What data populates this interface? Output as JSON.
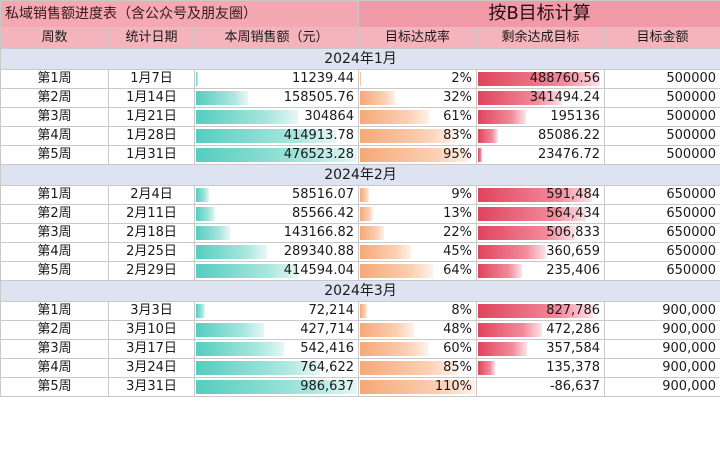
{
  "title_left": "私域销售额进度表（含公众号及朋友圈）",
  "title_right": "按B目标计算",
  "headers": [
    "周数",
    "统计日期",
    "本周销售额（元）",
    "目标达成率",
    "剩余达成目标",
    "目标金额"
  ],
  "colors": {
    "sales_bar": "#55cdbf",
    "rate_bar": "#f6a877",
    "remain_bar": "#e0445d",
    "header_bg": "#f5b3bc",
    "month_bg": "#dde3f0"
  },
  "months": [
    {
      "label": "2024年1月",
      "rows": [
        {
          "week": "第1周",
          "date": "1月7日",
          "sales": "11239.44",
          "rate": "2%",
          "remain": "488760.56",
          "target": "500000",
          "sales_frac": 0.024,
          "rate_frac": 0.02,
          "remain_frac": 0.98
        },
        {
          "week": "第2周",
          "date": "1月14日",
          "sales": "158505.76",
          "rate": "32%",
          "remain": "341494.24",
          "target": "500000",
          "sales_frac": 0.33,
          "rate_frac": 0.32,
          "remain_frac": 0.68
        },
        {
          "week": "第3周",
          "date": "1月21日",
          "sales": "304864",
          "rate": "61%",
          "remain": "195136",
          "target": "500000",
          "sales_frac": 0.64,
          "rate_frac": 0.61,
          "remain_frac": 0.39
        },
        {
          "week": "第4周",
          "date": "1月28日",
          "sales": "414913.78",
          "rate": "83%",
          "remain": "85086.22",
          "target": "500000",
          "sales_frac": 0.87,
          "rate_frac": 0.83,
          "remain_frac": 0.17
        },
        {
          "week": "第5周",
          "date": "1月31日",
          "sales": "476523.28",
          "rate": "95%",
          "remain": "23476.72",
          "target": "500000",
          "sales_frac": 1.0,
          "rate_frac": 0.95,
          "remain_frac": 0.05
        }
      ]
    },
    {
      "label": "2024年2月",
      "rows": [
        {
          "week": "第1周",
          "date": "2月4日",
          "sales": "58516.07",
          "rate": "9%",
          "remain": "591,484",
          "target": "650000",
          "sales_frac": 0.09,
          "rate_frac": 0.09,
          "remain_frac": 0.91
        },
        {
          "week": "第2周",
          "date": "2月11日",
          "sales": "85566.42",
          "rate": "13%",
          "remain": "564,434",
          "target": "650000",
          "sales_frac": 0.13,
          "rate_frac": 0.13,
          "remain_frac": 0.87
        },
        {
          "week": "第3周",
          "date": "2月18日",
          "sales": "143166.82",
          "rate": "22%",
          "remain": "506,833",
          "target": "650000",
          "sales_frac": 0.22,
          "rate_frac": 0.22,
          "remain_frac": 0.78
        },
        {
          "week": "第4周",
          "date": "2月25日",
          "sales": "289340.88",
          "rate": "45%",
          "remain": "360,659",
          "target": "650000",
          "sales_frac": 0.45,
          "rate_frac": 0.45,
          "remain_frac": 0.55
        },
        {
          "week": "第5周",
          "date": "2月29日",
          "sales": "414594.04",
          "rate": "64%",
          "remain": "235,406",
          "target": "650000",
          "sales_frac": 0.64,
          "rate_frac": 0.64,
          "remain_frac": 0.36
        }
      ]
    },
    {
      "label": "2024年3月",
      "rows": [
        {
          "week": "第1周",
          "date": "3月3日",
          "sales": "72,214",
          "rate": "8%",
          "remain": "827,786",
          "target": "900,000",
          "sales_frac": 0.07,
          "rate_frac": 0.08,
          "remain_frac": 0.92
        },
        {
          "week": "第2周",
          "date": "3月10日",
          "sales": "427,714",
          "rate": "48%",
          "remain": "472,286",
          "target": "900,000",
          "sales_frac": 0.43,
          "rate_frac": 0.48,
          "remain_frac": 0.52
        },
        {
          "week": "第3周",
          "date": "3月17日",
          "sales": "542,416",
          "rate": "60%",
          "remain": "357,584",
          "target": "900,000",
          "sales_frac": 0.55,
          "rate_frac": 0.6,
          "remain_frac": 0.4
        },
        {
          "week": "第4周",
          "date": "3月24日",
          "sales": "764,622",
          "rate": "85%",
          "remain": "135,378",
          "target": "900,000",
          "sales_frac": 0.77,
          "rate_frac": 0.85,
          "remain_frac": 0.15
        },
        {
          "week": "第5周",
          "date": "3月31日",
          "sales": "986,637",
          "rate": "110%",
          "remain": "-86,637",
          "target": "900,000",
          "sales_frac": 1.0,
          "rate_frac": 1.0,
          "remain_frac": 0.0
        }
      ]
    }
  ]
}
